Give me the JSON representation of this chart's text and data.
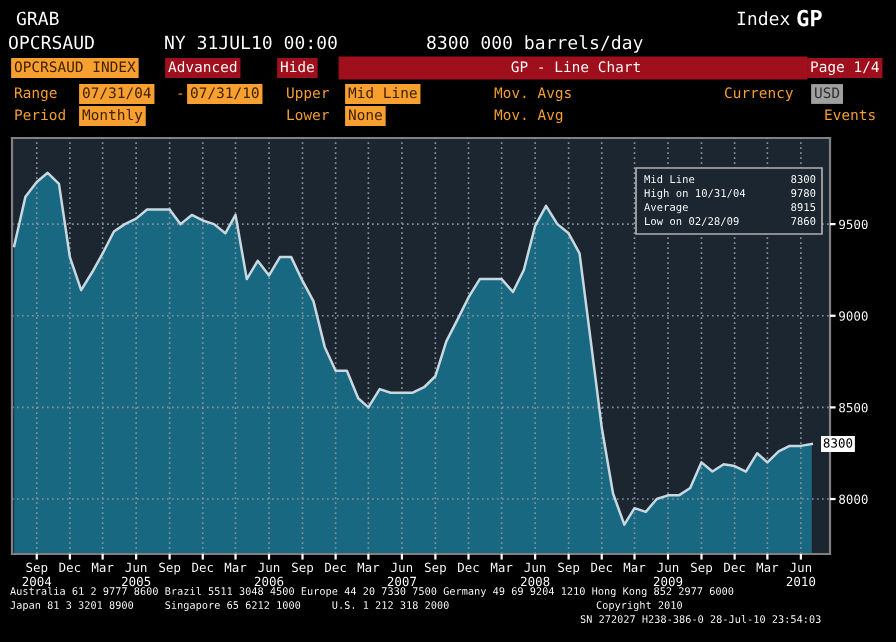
{
  "chart_data": {
    "type": "area",
    "x": [
      "2004-07",
      "2004-08",
      "2004-09",
      "2004-10",
      "2004-11",
      "2004-12",
      "2005-01",
      "2005-02",
      "2005-03",
      "2005-04",
      "2005-05",
      "2005-06",
      "2005-07",
      "2005-08",
      "2005-09",
      "2005-10",
      "2005-11",
      "2005-12",
      "2006-01",
      "2006-02",
      "2006-03",
      "2006-04",
      "2006-05",
      "2006-06",
      "2006-07",
      "2006-08",
      "2006-09",
      "2006-10",
      "2006-11",
      "2006-12",
      "2007-01",
      "2007-02",
      "2007-03",
      "2007-04",
      "2007-05",
      "2007-06",
      "2007-07",
      "2007-08",
      "2007-09",
      "2007-10",
      "2007-11",
      "2007-12",
      "2008-01",
      "2008-02",
      "2008-03",
      "2008-04",
      "2008-05",
      "2008-06",
      "2008-07",
      "2008-08",
      "2008-09",
      "2008-10",
      "2008-11",
      "2008-12",
      "2009-01",
      "2009-02",
      "2009-03",
      "2009-04",
      "2009-05",
      "2009-06",
      "2009-07",
      "2009-08",
      "2009-09",
      "2009-10",
      "2009-11",
      "2009-12",
      "2010-01",
      "2010-02",
      "2010-03",
      "2010-04",
      "2010-05",
      "2010-06",
      "2010-07"
    ],
    "series": [
      {
        "color": "#17708a",
        "values": [
          9380,
          9650,
          9730,
          9780,
          9720,
          9320,
          9140,
          9240,
          9340,
          9460,
          9500,
          9530,
          9580,
          9580,
          9580,
          9500,
          9550,
          9520,
          9500,
          9450,
          9550,
          9200,
          9300,
          9220,
          9320,
          9320,
          9190,
          9080,
          8830,
          8700,
          8700,
          8550,
          8500,
          8600,
          8580,
          8580,
          8580,
          8610,
          8670,
          8860,
          8980,
          9100,
          9200,
          9200,
          9200,
          9130,
          9250,
          9490,
          9600,
          9500,
          9450,
          9340,
          8860,
          8390,
          8030,
          7860,
          7950,
          7930,
          8000,
          8020,
          8020,
          8060,
          8200,
          8150,
          8190,
          8180,
          8150,
          8250,
          8200,
          8260,
          8290,
          8290,
          8300
        ]
      }
    ],
    "xlim": [
      "2004-06-25",
      "2010-08-20"
    ],
    "xticks": [
      {
        "value": "2004-09",
        "label": "Sep\n2004"
      },
      {
        "value": "2004-12",
        "label": "Dec"
      },
      {
        "value": "2005-03",
        "label": "Mar"
      },
      {
        "value": "2005-06",
        "label": "Jun\n2005"
      },
      {
        "value": "2005-09",
        "label": "Sep"
      },
      {
        "value": "2005-12",
        "label": "Dec"
      },
      {
        "value": "2006-03",
        "label": "Mar"
      },
      {
        "value": "2006-06",
        "label": "Jun\n2006"
      },
      {
        "value": "2006-09",
        "label": "Sep"
      },
      {
        "value": "2006-12",
        "label": "Dec"
      },
      {
        "value": "2007-03",
        "label": "Mar"
      },
      {
        "value": "2007-06",
        "label": "Jun\n2007"
      },
      {
        "value": "2007-09",
        "label": "Sep"
      },
      {
        "value": "2007-12",
        "label": "Dec"
      },
      {
        "value": "2008-03",
        "label": "Mar"
      },
      {
        "value": "2008-06",
        "label": "Jun\n2008"
      },
      {
        "value": "2008-09",
        "label": "Sep"
      },
      {
        "value": "2008-12",
        "label": "Dec"
      },
      {
        "value": "2009-03",
        "label": "Mar"
      },
      {
        "value": "2009-06",
        "label": "Jun\n2009"
      },
      {
        "value": "2009-09",
        "label": "Sep"
      },
      {
        "value": "2009-12",
        "label": "Dec"
      },
      {
        "value": "2010-03",
        "label": "Mar"
      },
      {
        "value": "2010-06",
        "label": "Jun\n2010"
      }
    ],
    "ylim": [
      7700,
      9970
    ],
    "yticks": [
      8000,
      8500,
      9000,
      9500
    ],
    "grid": true,
    "annotations": [
      "GRAB",
      "Index",
      "GP",
      "OPCRSAUD",
      "NY 31JUL10 00:00",
      "8300 000 barrels/day",
      "OPCRSAUD INDEX",
      "Advanced",
      "Hide",
      "GP - Line Chart",
      "Page 1/4",
      "Range",
      "07/31/04",
      "-",
      "07/31/10",
      "Upper",
      "Mid Line",
      "Mov. Avgs",
      "Currency",
      "USD",
      "Period",
      "Monthly",
      "Lower",
      "None",
      "Mov. Avg",
      "Events",
      "Mid Line",
      "8300",
      "High on 10/31/04",
      "9780",
      "Average",
      "8915",
      "Low on 02/28/09",
      "7860",
      "Australia 61 2 9777 8600 Brazil 5511 3048 4500 Europe 44 20 7330 7500 Germany 49 69 9204 1210 Hong Kong 852 2977 6000",
      "Japan 81 3 3201 8900     Singapore 65 6212 1000     U.S. 1 212 318 2000",
      "Copyright 2010",
      "SN 272027 H238-386-0 28-Jul-10 23:54:03",
      {
        "text": "8300",
        "x": "2010-07",
        "y": 8300
      }
    ]
  }
}
